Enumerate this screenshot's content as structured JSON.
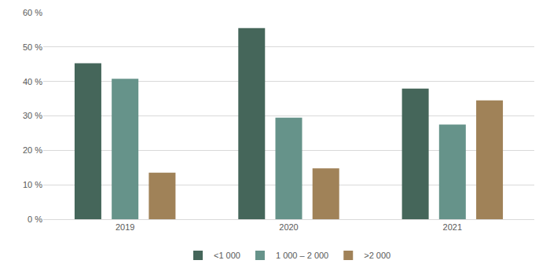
{
  "chart_data": {
    "type": "bar",
    "categories": [
      "2019",
      "2020",
      "2021"
    ],
    "series": [
      {
        "name": "<1 000",
        "color": "#45665a",
        "values": [
          45.3,
          55.5,
          37.9
        ]
      },
      {
        "name": "1 000 – 2 000",
        "color": "#66938a",
        "values": [
          40.8,
          29.5,
          27.5
        ]
      },
      {
        "name": ">2 000",
        "color": "#a08258",
        "values": [
          13.5,
          14.8,
          34.5
        ]
      }
    ],
    "ylim": [
      0,
      60
    ],
    "yticks": [
      {
        "value": 0,
        "label": "0 %"
      },
      {
        "value": 10,
        "label": "10 %"
      },
      {
        "value": 20,
        "label": "20 %"
      },
      {
        "value": 30,
        "label": "30 %"
      },
      {
        "value": 40,
        "label": "40 %"
      },
      {
        "value": 50,
        "label": "50 %"
      },
      {
        "value": 60,
        "label": "60 %"
      }
    ],
    "grid": true,
    "legend": "bottom"
  }
}
